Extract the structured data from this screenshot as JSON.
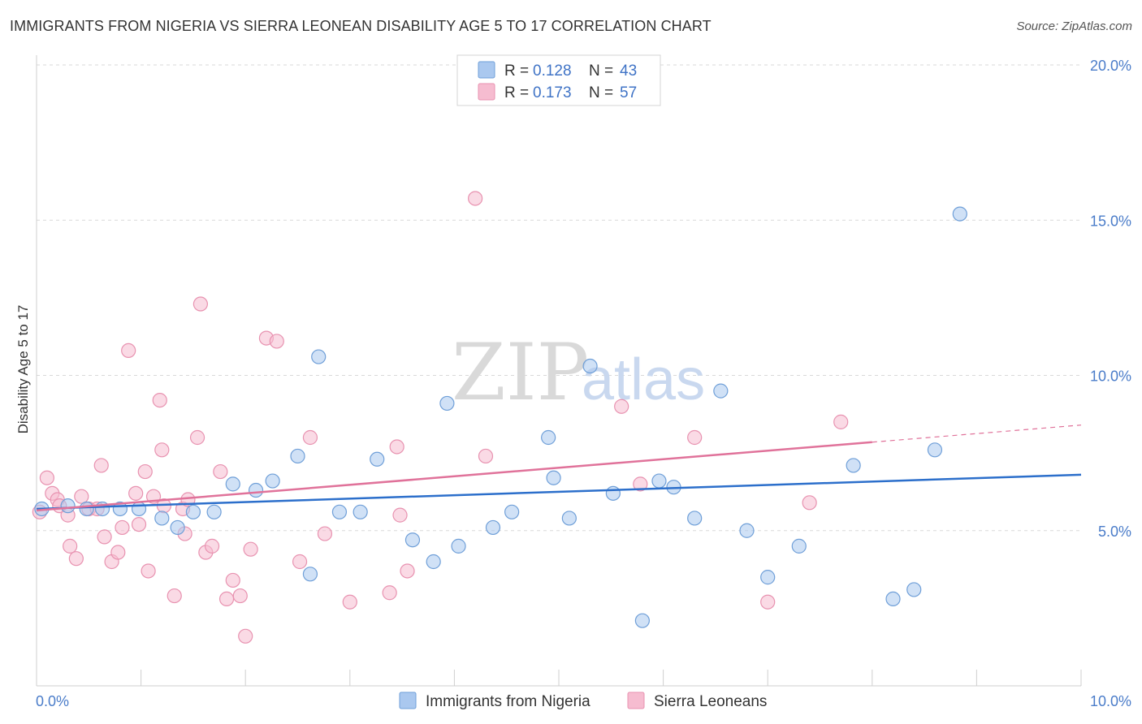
{
  "header": {
    "title": "IMMIGRANTS FROM NIGERIA VS SIERRA LEONEAN DISABILITY AGE 5 TO 17 CORRELATION CHART",
    "source": "Source: ZipAtlas.com"
  },
  "watermark": {
    "zip": "ZIP",
    "atlas": "atlas"
  },
  "colors": {
    "blue_fill": "#aac8ef",
    "blue_stroke": "#6f9fd8",
    "blue_line": "#2c6fcb",
    "pink_fill": "#f6bcd0",
    "pink_stroke": "#e892b0",
    "pink_line": "#e0729a",
    "grid": "#d9d9d9",
    "axis_text": "#4a7cc9"
  },
  "legend": {
    "rows": [
      {
        "r_label": "R = ",
        "r_value": "0.128",
        "n_label": "N = ",
        "n_value": "43"
      },
      {
        "r_label": "R = ",
        "r_value": "0.173",
        "n_label": "N = ",
        "n_value": "57"
      }
    ]
  },
  "chart_data": {
    "type": "scatter",
    "title": "IMMIGRANTS FROM NIGERIA VS SIERRA LEONEAN DISABILITY AGE 5 TO 17 CORRELATION CHART",
    "xlabel": "",
    "ylabel": "Disability Age 5 to 17",
    "xlim": [
      0,
      10
    ],
    "ylim": [
      0,
      20
    ],
    "x_tick_labels": [
      "0.0%",
      "10.0%"
    ],
    "y_ticks": [
      5,
      10,
      15,
      20
    ],
    "y_tick_labels": [
      "5.0%",
      "10.0%",
      "15.0%",
      "20.0%"
    ],
    "grid": true,
    "legend_position": "top-center",
    "series": [
      {
        "name": "Immigrants from Nigeria",
        "color": "#aac8ef",
        "trend": {
          "x": [
            0,
            10
          ],
          "y": [
            5.7,
            6.8
          ]
        },
        "points": [
          [
            0.05,
            5.7
          ],
          [
            0.3,
            5.8
          ],
          [
            0.48,
            5.7
          ],
          [
            0.63,
            5.7
          ],
          [
            0.8,
            5.7
          ],
          [
            0.98,
            5.7
          ],
          [
            1.2,
            5.4
          ],
          [
            1.35,
            5.1
          ],
          [
            1.5,
            5.6
          ],
          [
            1.7,
            5.6
          ],
          [
            1.88,
            6.5
          ],
          [
            2.1,
            6.3
          ],
          [
            2.26,
            6.6
          ],
          [
            2.5,
            7.4
          ],
          [
            2.62,
            3.6
          ],
          [
            2.7,
            10.6
          ],
          [
            2.9,
            5.6
          ],
          [
            3.1,
            5.6
          ],
          [
            3.26,
            7.3
          ],
          [
            3.6,
            4.7
          ],
          [
            3.8,
            4.0
          ],
          [
            3.93,
            9.1
          ],
          [
            4.04,
            4.5
          ],
          [
            4.37,
            5.1
          ],
          [
            4.55,
            5.6
          ],
          [
            4.9,
            8.0
          ],
          [
            4.95,
            6.7
          ],
          [
            5.1,
            5.4
          ],
          [
            5.3,
            10.3
          ],
          [
            5.52,
            6.2
          ],
          [
            5.8,
            2.1
          ],
          [
            5.96,
            6.6
          ],
          [
            6.1,
            6.4
          ],
          [
            6.3,
            5.4
          ],
          [
            6.55,
            9.5
          ],
          [
            6.8,
            5.0
          ],
          [
            7.0,
            3.5
          ],
          [
            7.3,
            4.5
          ],
          [
            7.82,
            7.1
          ],
          [
            8.2,
            2.8
          ],
          [
            8.4,
            3.1
          ],
          [
            8.6,
            7.6
          ],
          [
            8.84,
            15.2
          ]
        ]
      },
      {
        "name": "Sierra Leoneans",
        "color": "#f6bcd0",
        "trend": {
          "x": [
            0,
            8.0
          ],
          "y": [
            5.65,
            7.85
          ]
        },
        "trend_extension": {
          "x": [
            8.0,
            10
          ],
          "y": [
            7.85,
            8.4
          ]
        },
        "points": [
          [
            0.03,
            5.6
          ],
          [
            0.1,
            6.7
          ],
          [
            0.15,
            6.2
          ],
          [
            0.2,
            6.0
          ],
          [
            0.22,
            5.8
          ],
          [
            0.3,
            5.5
          ],
          [
            0.32,
            4.5
          ],
          [
            0.38,
            4.1
          ],
          [
            0.43,
            6.1
          ],
          [
            0.5,
            5.7
          ],
          [
            0.58,
            5.7
          ],
          [
            0.62,
            7.1
          ],
          [
            0.65,
            4.8
          ],
          [
            0.72,
            4.0
          ],
          [
            0.78,
            4.3
          ],
          [
            0.82,
            5.1
          ],
          [
            0.88,
            10.8
          ],
          [
            0.95,
            6.2
          ],
          [
            0.98,
            5.2
          ],
          [
            1.04,
            6.9
          ],
          [
            1.07,
            3.7
          ],
          [
            1.12,
            6.1
          ],
          [
            1.18,
            9.2
          ],
          [
            1.2,
            7.6
          ],
          [
            1.22,
            5.8
          ],
          [
            1.32,
            2.9
          ],
          [
            1.4,
            5.7
          ],
          [
            1.42,
            4.9
          ],
          [
            1.45,
            6.0
          ],
          [
            1.54,
            8.0
          ],
          [
            1.57,
            12.3
          ],
          [
            1.62,
            4.3
          ],
          [
            1.68,
            4.5
          ],
          [
            1.76,
            6.9
          ],
          [
            1.82,
            2.8
          ],
          [
            1.88,
            3.4
          ],
          [
            1.95,
            2.9
          ],
          [
            2.0,
            1.6
          ],
          [
            2.05,
            4.4
          ],
          [
            2.2,
            11.2
          ],
          [
            2.3,
            11.1
          ],
          [
            2.52,
            4.0
          ],
          [
            2.62,
            8.0
          ],
          [
            2.76,
            4.9
          ],
          [
            3.0,
            2.7
          ],
          [
            3.38,
            3.0
          ],
          [
            3.45,
            7.7
          ],
          [
            3.48,
            5.5
          ],
          [
            3.55,
            3.7
          ],
          [
            4.2,
            15.7
          ],
          [
            4.3,
            7.4
          ],
          [
            5.6,
            9.0
          ],
          [
            5.78,
            6.5
          ],
          [
            6.3,
            8.0
          ],
          [
            7.0,
            2.7
          ],
          [
            7.4,
            5.9
          ],
          [
            7.7,
            8.5
          ]
        ]
      }
    ]
  }
}
